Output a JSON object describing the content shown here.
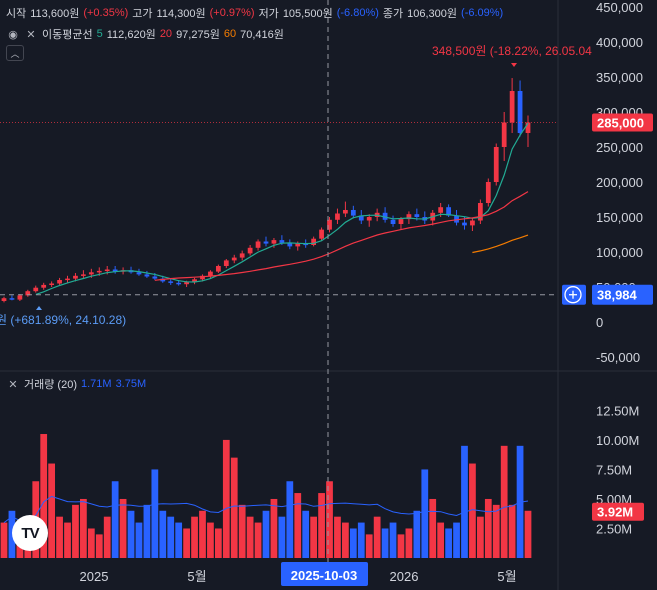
{
  "ohlc": {
    "open_label": "시작",
    "open": "113,600원",
    "open_pct": "(+0.35%)",
    "high_label": "고가",
    "high": "114,300원",
    "high_pct": "(+0.97%)",
    "low_label": "저가",
    "low": "105,500원",
    "low_pct": "(-6.80%)",
    "close_label": "종가",
    "close": "106,300원",
    "close_pct": "(-6.09%)"
  },
  "ma": {
    "title": "이동평균선",
    "p1": "5",
    "v1": "112,620원",
    "p2": "20",
    "v2": "97,275원",
    "p3": "60",
    "v3": "70,416원"
  },
  "volume_legend": {
    "title": "거래량 (20)",
    "v1": "1.71M",
    "v2": "3.75M"
  },
  "annotations": {
    "high_marker": "348,500원 (-18.22%, 26.05.04",
    "low_marker": "원 (+681.89%, 24.10.28)"
  },
  "price_axis": {
    "ticks": [
      "450,000",
      "400,000",
      "350,000",
      "300,000",
      "250,000",
      "200,000",
      "150,000",
      "100,000",
      "50,000",
      "0",
      "-50,000"
    ],
    "tick_values": [
      450000,
      400000,
      350000,
      300000,
      250000,
      200000,
      150000,
      100000,
      50000,
      0,
      -50000
    ],
    "last_price": "285,000",
    "crosshair_price": "38,984"
  },
  "volume_axis": {
    "ticks": [
      "12.50M",
      "10.00M",
      "7.50M",
      "5.00M",
      "2.50M"
    ],
    "tick_values": [
      12.5,
      10,
      7.5,
      5,
      2.5
    ],
    "last_volume": "3.92M"
  },
  "time_axis": {
    "labels": [
      "2025",
      "5월",
      "2026",
      "5월"
    ],
    "crosshair_date": "2025-10-03"
  },
  "colors": {
    "up": "#f23645",
    "down": "#2962ff",
    "ma5": "#22ab94",
    "ma20": "#f23645",
    "ma60": "#f57c00",
    "bg": "#161a25",
    "label_blue": "#2962ff"
  },
  "logo": "TV",
  "chart_data": {
    "type": "candlestick",
    "price_series": [
      [
        30000,
        36000,
        28000,
        34000
      ],
      [
        34000,
        38000,
        31000,
        32000
      ],
      [
        32000,
        40000,
        30000,
        38000
      ],
      [
        38000,
        46000,
        36000,
        44000
      ],
      [
        44000,
        52000,
        42000,
        49000
      ],
      [
        49000,
        56000,
        46000,
        53000
      ],
      [
        53000,
        58000,
        50000,
        55000
      ],
      [
        55000,
        63000,
        53000,
        60000
      ],
      [
        60000,
        66000,
        56000,
        62000
      ],
      [
        62000,
        70000,
        58000,
        66000
      ],
      [
        66000,
        74000,
        62000,
        68000
      ],
      [
        68000,
        76000,
        63000,
        71000
      ],
      [
        71000,
        78000,
        66000,
        73000
      ],
      [
        73000,
        80000,
        68000,
        75000
      ],
      [
        75000,
        80000,
        69000,
        72000
      ],
      [
        72000,
        78000,
        68000,
        74000
      ],
      [
        74000,
        79000,
        69000,
        71000
      ],
      [
        71000,
        76000,
        66000,
        68000
      ],
      [
        68000,
        73000,
        63000,
        65000
      ],
      [
        65000,
        70000,
        60000,
        62000
      ],
      [
        62000,
        66000,
        56000,
        58000
      ],
      [
        58000,
        62000,
        53000,
        56000
      ],
      [
        56000,
        60000,
        52000,
        54000
      ],
      [
        54000,
        59000,
        50000,
        57000
      ],
      [
        57000,
        63000,
        54000,
        61000
      ],
      [
        61000,
        68000,
        58000,
        66000
      ],
      [
        66000,
        74000,
        63000,
        72000
      ],
      [
        72000,
        82000,
        70000,
        80000
      ],
      [
        80000,
        90000,
        77000,
        88000
      ],
      [
        88000,
        96000,
        84000,
        92000
      ],
      [
        92000,
        102000,
        88000,
        98000
      ],
      [
        98000,
        110000,
        95000,
        106000
      ],
      [
        106000,
        118000,
        102000,
        115000
      ],
      [
        115000,
        122000,
        108000,
        112000
      ],
      [
        112000,
        120000,
        106000,
        117000
      ],
      [
        117000,
        124000,
        110000,
        113000
      ],
      [
        113000,
        118000,
        104000,
        108000
      ],
      [
        108000,
        115000,
        102000,
        112000
      ],
      [
        112000,
        118000,
        106000,
        110000
      ],
      [
        110000,
        122000,
        108000,
        119000
      ],
      [
        119000,
        135000,
        116000,
        132000
      ],
      [
        132000,
        150000,
        128000,
        146000
      ],
      [
        146000,
        162000,
        140000,
        155000
      ],
      [
        155000,
        172000,
        150000,
        160000
      ],
      [
        160000,
        166000,
        148000,
        152000
      ],
      [
        152000,
        160000,
        140000,
        145000
      ],
      [
        145000,
        154000,
        136000,
        150000
      ],
      [
        150000,
        162000,
        144000,
        156000
      ],
      [
        156000,
        164000,
        142000,
        146000
      ],
      [
        146000,
        152000,
        136000,
        140000
      ],
      [
        140000,
        150000,
        132000,
        147000
      ],
      [
        147000,
        158000,
        140000,
        154000
      ],
      [
        154000,
        162000,
        145000,
        150000
      ],
      [
        150000,
        158000,
        140000,
        145000
      ],
      [
        145000,
        160000,
        138000,
        156000
      ],
      [
        156000,
        170000,
        150000,
        164000
      ],
      [
        164000,
        168000,
        150000,
        152000
      ],
      [
        152000,
        160000,
        138000,
        142000
      ],
      [
        142000,
        150000,
        132000,
        138000
      ],
      [
        138000,
        148000,
        130000,
        145000
      ],
      [
        145000,
        175000,
        140000,
        170000
      ],
      [
        170000,
        205000,
        165000,
        200000
      ],
      [
        200000,
        255000,
        195000,
        250000
      ],
      [
        250000,
        300000,
        230000,
        285000
      ],
      [
        285000,
        348500,
        270000,
        330000
      ],
      [
        330000,
        345000,
        265000,
        270000
      ],
      [
        270000,
        295000,
        250000,
        285000
      ]
    ],
    "volume_series": [
      3.0,
      4.0,
      2.5,
      2.0,
      6.5,
      10.5,
      8.0,
      3.5,
      3.0,
      4.5,
      5.0,
      2.5,
      2.0,
      3.5,
      6.5,
      5.0,
      4.0,
      3.0,
      4.5,
      7.5,
      4.0,
      3.5,
      3.0,
      2.5,
      3.5,
      4.0,
      3.0,
      2.5,
      10.0,
      8.5,
      4.5,
      3.5,
      3.0,
      4.0,
      5.0,
      3.5,
      6.5,
      5.5,
      4.0,
      3.5,
      5.5,
      6.5,
      3.5,
      3.0,
      2.5,
      3.0,
      2.0,
      3.5,
      2.5,
      3.0,
      2.0,
      2.5,
      4.0,
      7.5,
      5.0,
      3.0,
      2.5,
      3.0,
      9.5,
      8.0,
      3.5,
      5.0,
      4.5,
      9.5,
      4.5,
      9.5,
      4.0
    ],
    "volume_unit": "M",
    "ylim": [
      -50000,
      450000
    ],
    "volume_ylim": [
      0,
      12.5
    ]
  }
}
